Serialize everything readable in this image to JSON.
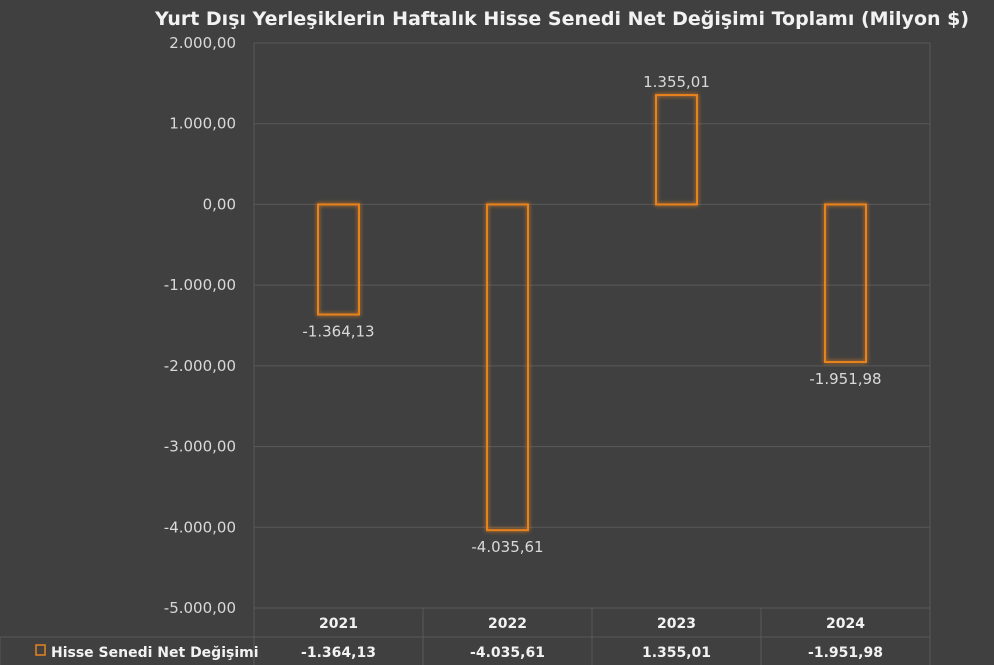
{
  "chart_data": {
    "type": "bar",
    "title": "Yurt Dışı Yerleşiklerin Haftalık Hisse Senedi Net Değişimi Toplamı (Milyon $)",
    "categories": [
      "2021",
      "2022",
      "2023",
      "2024"
    ],
    "series": [
      {
        "name": "Hisse Senedi Net Değişimi",
        "values": [
          -1364.13,
          -4035.61,
          1355.01,
          -1951.98
        ],
        "labels": [
          "-1.364,13",
          "-4.035,61",
          "1.355,01",
          "-1.951,98"
        ]
      }
    ],
    "ylim": [
      -5000,
      2000
    ],
    "yticks": [
      2000,
      1000,
      0,
      -1000,
      -2000,
      -3000,
      -4000,
      -5000
    ],
    "ytick_labels": [
      "2.000,00",
      "1.000,00",
      "0,00",
      "-1.000,00",
      "-2.000,00",
      "-3.000,00",
      "-4.000,00",
      "-5.000,00"
    ],
    "grid": true,
    "data_table": true,
    "legend_position": "data-table",
    "colors": {
      "background": "#404040",
      "bar_outline": "#e8821e",
      "bar_glow": "#f0a04b",
      "grid": "#595959",
      "text": "#d9d9d9"
    }
  }
}
